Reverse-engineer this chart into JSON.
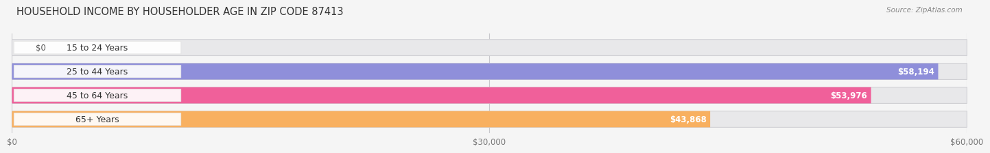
{
  "title": "HOUSEHOLD INCOME BY HOUSEHOLDER AGE IN ZIP CODE 87413",
  "source": "Source: ZipAtlas.com",
  "categories": [
    "15 to 24 Years",
    "25 to 44 Years",
    "45 to 64 Years",
    "65+ Years"
  ],
  "values": [
    0,
    58194,
    53976,
    43868
  ],
  "bar_colors": [
    "#72cece",
    "#8f8fda",
    "#f0609a",
    "#f8b060"
  ],
  "value_labels": [
    "$0",
    "$58,194",
    "$53,976",
    "$43,868"
  ],
  "xlim": [
    0,
    60000
  ],
  "xticks": [
    0,
    30000,
    60000
  ],
  "xtick_labels": [
    "$0",
    "$30,000",
    "$60,000"
  ],
  "background_color": "#f5f5f5",
  "bar_bg_color": "#e8e8ea",
  "bar_border_color": "#d0d0d4",
  "title_fontsize": 10.5,
  "source_fontsize": 7.5,
  "label_fontsize": 9,
  "value_fontsize": 8.5,
  "tick_fontsize": 8.5,
  "bar_height": 0.68,
  "fig_width": 14.06,
  "fig_height": 2.33,
  "label_pill_color": "#ffffff",
  "label_pill_alpha": 0.92
}
